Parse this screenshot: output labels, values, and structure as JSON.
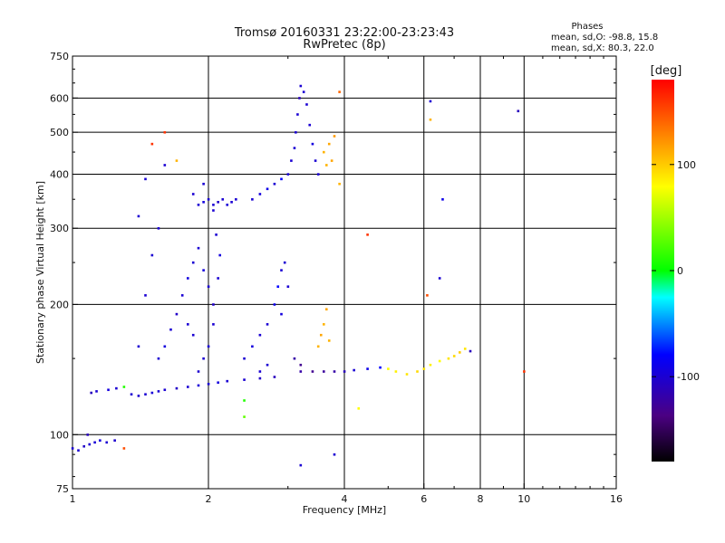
{
  "chart_data": {
    "type": "scatter",
    "title": "Tromsø 20160331 23:22:00-23:23:43",
    "subtitle": "RwPretec (8p)",
    "xlabel": "Frequency [MHz]",
    "ylabel": "Stationary phase Virtual Height [km]",
    "x_scale": "log",
    "y_scale": "log",
    "xlim": [
      1,
      16
    ],
    "ylim": [
      75,
      750
    ],
    "x_ticks": [
      1,
      2,
      4,
      6,
      8,
      10,
      16
    ],
    "y_ticks": [
      75,
      100,
      200,
      300,
      400,
      500,
      600,
      750
    ],
    "grid": true,
    "phase_stats": {
      "header": "Phases",
      "line_o": "mean, sd,O: -98.8, 15.8",
      "line_x": "mean, sd,X:  80.3, 22.0"
    },
    "colorbar": {
      "label": "[deg]",
      "ticks": [
        100,
        0,
        -100
      ],
      "range": [
        -180,
        180
      ]
    },
    "series": [
      {
        "points": [
          [
            1.0,
            93,
            -100
          ],
          [
            1.03,
            92,
            -100
          ],
          [
            1.06,
            94,
            -105
          ],
          [
            1.09,
            95,
            -100
          ],
          [
            1.12,
            96,
            -98
          ],
          [
            1.15,
            97,
            -95
          ],
          [
            1.19,
            96,
            -100
          ],
          [
            1.24,
            97,
            -102
          ],
          [
            1.08,
            100,
            -110
          ],
          [
            1.3,
            93,
            150
          ],
          [
            1.1,
            125,
            -110
          ],
          [
            1.13,
            126,
            -100
          ],
          [
            1.2,
            127,
            -95
          ],
          [
            1.25,
            128,
            -100
          ],
          [
            1.3,
            129,
            10
          ],
          [
            1.35,
            124,
            -100
          ],
          [
            1.4,
            123,
            -102
          ],
          [
            1.45,
            124,
            -100
          ],
          [
            1.5,
            125,
            -98
          ],
          [
            1.55,
            126,
            -100
          ],
          [
            1.6,
            127,
            -100
          ],
          [
            1.7,
            128,
            -105
          ],
          [
            1.8,
            129,
            -100
          ],
          [
            1.9,
            130,
            -98
          ],
          [
            2.0,
            131,
            -100
          ],
          [
            2.1,
            132,
            -95
          ],
          [
            2.2,
            133,
            -100
          ],
          [
            2.4,
            134,
            -100
          ],
          [
            2.6,
            135,
            -105
          ],
          [
            2.8,
            136,
            -110
          ],
          [
            1.55,
            150,
            -100
          ],
          [
            1.6,
            160,
            -95
          ],
          [
            1.65,
            175,
            -100
          ],
          [
            1.7,
            190,
            -105
          ],
          [
            1.75,
            210,
            -100
          ],
          [
            1.8,
            230,
            -95
          ],
          [
            1.85,
            250,
            -100
          ],
          [
            1.9,
            270,
            -100
          ],
          [
            1.95,
            240,
            -95
          ],
          [
            2.0,
            220,
            -100
          ],
          [
            2.05,
            200,
            -105
          ],
          [
            2.1,
            230,
            -100
          ],
          [
            2.12,
            260,
            -95
          ],
          [
            2.08,
            290,
            -100
          ],
          [
            2.05,
            180,
            -100
          ],
          [
            2.0,
            160,
            -98
          ],
          [
            1.95,
            150,
            -100
          ],
          [
            1.9,
            140,
            -102
          ],
          [
            1.85,
            170,
            -100
          ],
          [
            1.8,
            180,
            -100
          ],
          [
            2.4,
            150,
            -100
          ],
          [
            2.5,
            160,
            -95
          ],
          [
            2.6,
            170,
            -100
          ],
          [
            2.7,
            180,
            -100
          ],
          [
            2.8,
            200,
            -90
          ],
          [
            2.85,
            220,
            -80
          ],
          [
            2.9,
            240,
            -100
          ],
          [
            2.95,
            250,
            -100
          ],
          [
            3.0,
            220,
            -100
          ],
          [
            2.9,
            190,
            -95
          ],
          [
            3.1,
            150,
            -120
          ],
          [
            3.2,
            145,
            -130
          ],
          [
            2.7,
            145,
            -100
          ],
          [
            2.6,
            140,
            -100
          ],
          [
            1.9,
            340,
            -100
          ],
          [
            1.95,
            345,
            -95
          ],
          [
            2.0,
            350,
            -100
          ],
          [
            2.05,
            340,
            -100
          ],
          [
            2.1,
            345,
            -105
          ],
          [
            2.15,
            350,
            -100
          ],
          [
            2.2,
            340,
            -98
          ],
          [
            2.25,
            345,
            -100
          ],
          [
            2.3,
            350,
            -100
          ],
          [
            1.85,
            360,
            -100
          ],
          [
            1.95,
            380,
            -100
          ],
          [
            2.05,
            330,
            -100
          ],
          [
            2.5,
            350,
            -100
          ],
          [
            2.6,
            360,
            -95
          ],
          [
            2.7,
            370,
            -90
          ],
          [
            2.8,
            380,
            -100
          ],
          [
            2.9,
            390,
            -80
          ],
          [
            3.0,
            400,
            -100
          ],
          [
            3.05,
            430,
            -100
          ],
          [
            3.1,
            460,
            -100
          ],
          [
            3.12,
            500,
            -100
          ],
          [
            3.15,
            550,
            -100
          ],
          [
            3.18,
            600,
            -110
          ],
          [
            3.2,
            640,
            -100
          ],
          [
            3.25,
            620,
            -100
          ],
          [
            3.3,
            580,
            -100
          ],
          [
            3.35,
            520,
            -100
          ],
          [
            3.4,
            470,
            -95
          ],
          [
            3.45,
            430,
            -100
          ],
          [
            3.5,
            400,
            -100
          ],
          [
            3.6,
            450,
            110
          ],
          [
            3.7,
            470,
            115
          ],
          [
            3.8,
            490,
            120
          ],
          [
            3.65,
            420,
            110
          ],
          [
            3.75,
            430,
            115
          ],
          [
            3.9,
            620,
            140
          ],
          [
            3.2,
            140,
            -120
          ],
          [
            3.4,
            140,
            -130
          ],
          [
            3.6,
            140,
            -125
          ],
          [
            3.8,
            140,
            -120
          ],
          [
            4.0,
            140,
            -110
          ],
          [
            4.2,
            141,
            -100
          ],
          [
            4.5,
            142,
            -90
          ],
          [
            4.8,
            143,
            -80
          ],
          [
            5.0,
            142,
            80
          ],
          [
            5.2,
            140,
            85
          ],
          [
            5.5,
            138,
            90
          ],
          [
            5.8,
            140,
            95
          ],
          [
            6.0,
            142,
            90
          ],
          [
            6.2,
            145,
            85
          ],
          [
            6.5,
            148,
            80
          ],
          [
            6.8,
            150,
            90
          ],
          [
            7.0,
            152,
            95
          ],
          [
            7.2,
            155,
            100
          ],
          [
            7.4,
            158,
            90
          ],
          [
            7.6,
            156,
            -110
          ],
          [
            3.5,
            160,
            110
          ],
          [
            3.55,
            170,
            115
          ],
          [
            3.6,
            180,
            110
          ],
          [
            3.65,
            195,
            115
          ],
          [
            3.7,
            165,
            110
          ],
          [
            1.4,
            160,
            -100
          ],
          [
            1.45,
            210,
            -100
          ],
          [
            1.5,
            260,
            -100
          ],
          [
            1.45,
            390,
            -100
          ],
          [
            1.4,
            320,
            -100
          ],
          [
            1.5,
            470,
            160
          ],
          [
            1.6,
            500,
            160
          ],
          [
            1.6,
            420,
            -100
          ],
          [
            1.55,
            300,
            -100
          ],
          [
            1.7,
            430,
            110
          ],
          [
            6.2,
            590,
            -100
          ],
          [
            6.2,
            535,
            110
          ],
          [
            6.1,
            210,
            150
          ],
          [
            6.5,
            230,
            -100
          ],
          [
            6.6,
            350,
            -90
          ],
          [
            9.7,
            560,
            -110
          ],
          [
            10.0,
            140,
            160
          ],
          [
            3.2,
            85,
            -100
          ],
          [
            3.8,
            90,
            -100
          ],
          [
            4.5,
            290,
            160
          ],
          [
            3.9,
            380,
            110
          ],
          [
            2.4,
            120,
            10
          ],
          [
            2.4,
            110,
            30
          ],
          [
            4.3,
            115,
            80
          ]
        ]
      }
    ]
  }
}
